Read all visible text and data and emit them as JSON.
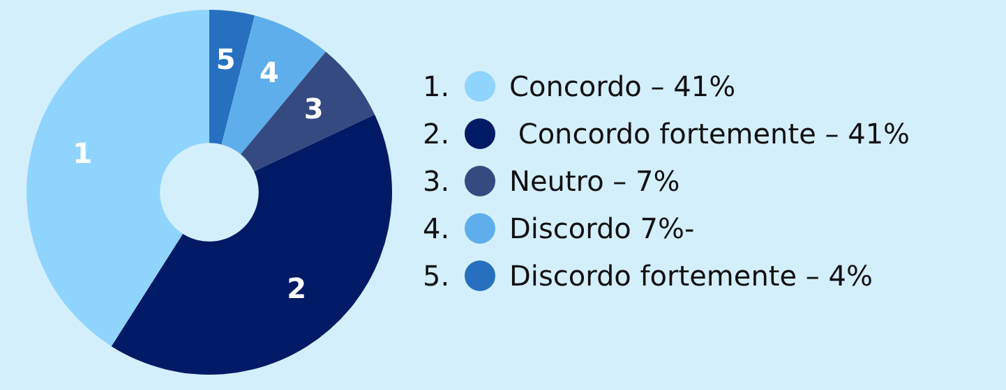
{
  "chart_data": {
    "type": "donut",
    "categories": [
      "Concordo – 41%",
      " Concordo fortemente – 41%",
      "Neutro – 7%",
      "Discordo 7%-",
      "Discordo fortemente – 4%"
    ],
    "values": [
      41,
      41,
      7,
      7,
      4
    ],
    "colors": [
      "#8fd4fd",
      "#001a66",
      "#344a80",
      "#5eaeec",
      "#2670bf"
    ],
    "annotations": [
      {
        "text": "1",
        "x": "Concordo – 41%"
      },
      {
        "text": "2",
        "x": " Concordo fortemente – 41%"
      },
      {
        "text": "3",
        "x": "Neutro – 7%"
      },
      {
        "text": "4",
        "x": "Discordo 7%-"
      },
      {
        "text": "5",
        "x": "Discordo fortemente – 4%"
      },
      "1.",
      "2.",
      "3.",
      "4.",
      "5."
    ],
    "legend": "right"
  }
}
